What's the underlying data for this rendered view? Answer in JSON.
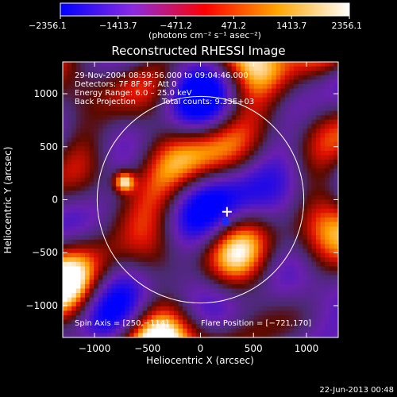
{
  "footer_timestamp": "22-Jun-2013 00:48",
  "chart_data": {
    "type": "heatmap",
    "title": "Reconstructed RHESSI Image",
    "xlabel": "Heliocentric X (arcsec)",
    "ylabel": "Heliocentric Y (arcsec)",
    "xlim": [
      -1300,
      1300
    ],
    "ylim": [
      -1300,
      1300
    ],
    "x_ticks": [
      -1000,
      -500,
      0,
      500,
      1000
    ],
    "y_ticks": [
      -1000,
      -500,
      0,
      500,
      1000
    ],
    "colorbar": {
      "min": -2356.1,
      "max": 2356.1,
      "tick_values": [
        -2356.1,
        -1413.7,
        -471.2,
        471.2,
        1413.7,
        2356.1
      ],
      "tick_labels": [
        "−2356.1",
        "−1413.7",
        "−471.2",
        "471.2",
        "1413.7",
        "2356.1"
      ],
      "units_label": "(photons cm⁻² s⁻¹ asec⁻²)",
      "colors": [
        "#0000ff",
        "#8a2be2",
        "#ff0000",
        "#ffa500",
        "#ffffff"
      ]
    },
    "annotations": [
      "29-Nov-2004 08:59:56.000 to 09:04:46.000",
      "Detectors: 7F 8F 9F, Att 0",
      "Energy Range: 6.0 – 25.0 keV",
      "Back Projection",
      "Total counts: 9.33E+03",
      "Spin Axis = [250,−114]",
      "Flare Position = [−721,170]"
    ],
    "solar_limb": {
      "center": [
        0,
        0
      ],
      "radius_arcsec": 975
    },
    "spin_axis": [
      250,
      -114
    ],
    "flare_position": [
      -721,
      170
    ],
    "bright_source": {
      "x": -721,
      "y": 170,
      "peak": 2356.1
    },
    "marker_plus": {
      "x": 250,
      "y": -114
    }
  }
}
